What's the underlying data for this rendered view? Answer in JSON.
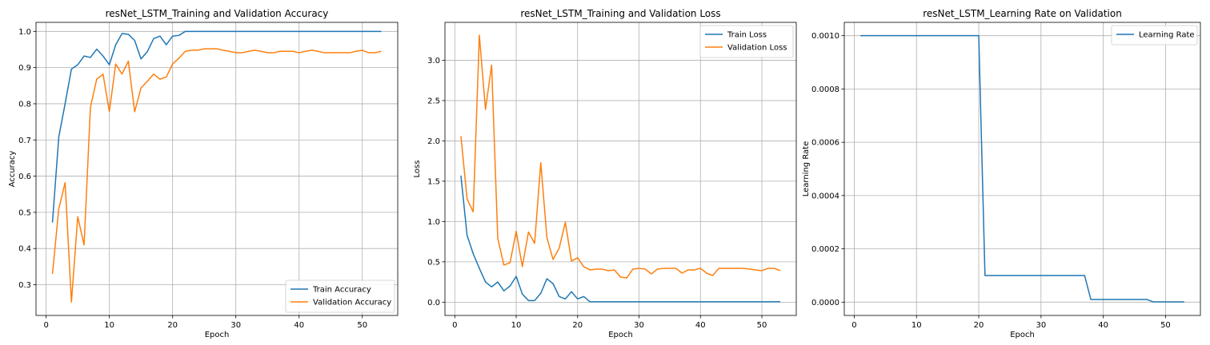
{
  "chart_data": [
    {
      "type": "line",
      "title": "resNet_LSTM_Training and Validation Accuracy",
      "xlabel": "Epoch",
      "ylabel": "Accuracy",
      "xlim": [
        -1.6,
        55.6
      ],
      "ylim": [
        0.215,
        1.025
      ],
      "xticks": [
        0,
        10,
        20,
        30,
        40,
        50
      ],
      "yticks": [
        0.3,
        0.4,
        0.5,
        0.6,
        0.7,
        0.8,
        0.9,
        1.0
      ],
      "ytick_labels": [
        "0.3",
        "0.4",
        "0.5",
        "0.6",
        "0.7",
        "0.8",
        "0.9",
        "1.0"
      ],
      "grid": true,
      "legend": "lower-right",
      "x": [
        1,
        2,
        3,
        4,
        5,
        6,
        7,
        8,
        9,
        10,
        11,
        12,
        13,
        14,
        15,
        16,
        17,
        18,
        19,
        20,
        21,
        22,
        23,
        24,
        25,
        26,
        27,
        28,
        29,
        30,
        31,
        32,
        33,
        34,
        35,
        36,
        37,
        38,
        39,
        40,
        41,
        42,
        43,
        44,
        45,
        46,
        47,
        48,
        49,
        50,
        51,
        52,
        53
      ],
      "series": [
        {
          "name": "Train Accuracy",
          "color": "#1f77b4",
          "values": [
            0.472,
            0.708,
            0.8,
            0.896,
            0.908,
            0.932,
            0.928,
            0.951,
            0.932,
            0.908,
            0.963,
            0.994,
            0.992,
            0.975,
            0.924,
            0.944,
            0.98,
            0.987,
            0.963,
            0.987,
            0.989,
            1.0,
            1.0,
            1.0,
            1.0,
            1.0,
            1.0,
            1.0,
            1.0,
            1.0,
            1.0,
            1.0,
            1.0,
            1.0,
            1.0,
            1.0,
            1.0,
            1.0,
            1.0,
            1.0,
            1.0,
            1.0,
            1.0,
            1.0,
            1.0,
            1.0,
            1.0,
            1.0,
            1.0,
            1.0,
            1.0,
            1.0,
            1.0
          ]
        },
        {
          "name": "Validation Accuracy",
          "color": "#ff7f0e",
          "values": [
            0.33,
            0.51,
            0.582,
            0.252,
            0.488,
            0.41,
            0.79,
            0.868,
            0.882,
            0.778,
            0.91,
            0.882,
            0.918,
            0.778,
            0.844,
            0.862,
            0.882,
            0.868,
            0.874,
            0.91,
            0.926,
            0.945,
            0.948,
            0.948,
            0.952,
            0.952,
            0.952,
            0.948,
            0.945,
            0.941,
            0.941,
            0.945,
            0.948,
            0.945,
            0.941,
            0.941,
            0.945,
            0.945,
            0.945,
            0.941,
            0.945,
            0.948,
            0.945,
            0.941,
            0.941,
            0.941,
            0.941,
            0.941,
            0.945,
            0.948,
            0.941,
            0.941,
            0.945
          ]
        }
      ]
    },
    {
      "type": "line",
      "title": "resNet_LSTM_Training and Validation Loss",
      "xlabel": "Epoch",
      "ylabel": "Loss",
      "xlim": [
        -1.6,
        55.6
      ],
      "ylim": [
        -0.165,
        3.47
      ],
      "xticks": [
        0,
        10,
        20,
        30,
        40,
        50
      ],
      "yticks": [
        0.0,
        0.5,
        1.0,
        1.5,
        2.0,
        2.5,
        3.0
      ],
      "ytick_labels": [
        "0.0",
        "0.5",
        "1.0",
        "1.5",
        "2.0",
        "2.5",
        "3.0"
      ],
      "grid": true,
      "legend": "top-right",
      "x": [
        1,
        2,
        3,
        4,
        5,
        6,
        7,
        8,
        9,
        10,
        11,
        12,
        13,
        14,
        15,
        16,
        17,
        18,
        19,
        20,
        21,
        22,
        23,
        24,
        25,
        26,
        27,
        28,
        29,
        30,
        31,
        32,
        33,
        34,
        35,
        36,
        37,
        38,
        39,
        40,
        41,
        42,
        43,
        44,
        45,
        46,
        47,
        48,
        49,
        50,
        51,
        52,
        53
      ],
      "series": [
        {
          "name": "Train Loss",
          "color": "#1f77b4",
          "values": [
            1.57,
            0.83,
            0.6,
            0.42,
            0.25,
            0.19,
            0.25,
            0.14,
            0.2,
            0.32,
            0.1,
            0.02,
            0.02,
            0.11,
            0.29,
            0.23,
            0.07,
            0.04,
            0.13,
            0.04,
            0.07,
            0.005,
            0.005,
            0.005,
            0.005,
            0.005,
            0.005,
            0.005,
            0.005,
            0.005,
            0.005,
            0.005,
            0.005,
            0.005,
            0.005,
            0.005,
            0.005,
            0.005,
            0.005,
            0.005,
            0.005,
            0.005,
            0.005,
            0.005,
            0.005,
            0.005,
            0.005,
            0.005,
            0.005,
            0.005,
            0.005,
            0.005,
            0.005
          ]
        },
        {
          "name": "Validation Loss",
          "color": "#ff7f0e",
          "values": [
            2.06,
            1.28,
            1.12,
            3.31,
            2.39,
            2.94,
            0.79,
            0.46,
            0.49,
            0.88,
            0.44,
            0.87,
            0.73,
            1.73,
            0.8,
            0.53,
            0.67,
            0.99,
            0.51,
            0.55,
            0.44,
            0.4,
            0.41,
            0.41,
            0.39,
            0.4,
            0.31,
            0.3,
            0.41,
            0.42,
            0.41,
            0.35,
            0.41,
            0.42,
            0.42,
            0.42,
            0.36,
            0.4,
            0.4,
            0.42,
            0.36,
            0.33,
            0.42,
            0.42,
            0.42,
            0.42,
            0.42,
            0.41,
            0.4,
            0.39,
            0.42,
            0.42,
            0.39
          ]
        }
      ]
    },
    {
      "type": "line",
      "title": "resNet_LSTM_Learning Rate on Validation",
      "xlabel": "Epoch",
      "ylabel": "Learning Rate",
      "xlim": [
        -1.6,
        55.6
      ],
      "ylim": [
        -5e-05,
        0.00105
      ],
      "xticks": [
        0,
        10,
        20,
        30,
        40,
        50
      ],
      "yticks": [
        0.0,
        0.0002,
        0.0004,
        0.0006,
        0.0008,
        0.001
      ],
      "ytick_labels": [
        "0.0000",
        "0.0002",
        "0.0004",
        "0.0006",
        "0.0008",
        "0.0010"
      ],
      "grid": true,
      "legend": "top-right",
      "x": [
        1,
        2,
        3,
        4,
        5,
        6,
        7,
        8,
        9,
        10,
        11,
        12,
        13,
        14,
        15,
        16,
        17,
        18,
        19,
        20,
        21,
        22,
        23,
        24,
        25,
        26,
        27,
        28,
        29,
        30,
        31,
        32,
        33,
        34,
        35,
        36,
        37,
        38,
        39,
        40,
        41,
        42,
        43,
        44,
        45,
        46,
        47,
        48,
        49,
        50,
        51,
        52,
        53
      ],
      "series": [
        {
          "name": "Learning Rate",
          "color": "#1f77b4",
          "values": [
            0.001,
            0.001,
            0.001,
            0.001,
            0.001,
            0.001,
            0.001,
            0.001,
            0.001,
            0.001,
            0.001,
            0.001,
            0.001,
            0.001,
            0.001,
            0.001,
            0.001,
            0.001,
            0.001,
            0.001,
            0.0001,
            0.0001,
            0.0001,
            0.0001,
            0.0001,
            0.0001,
            0.0001,
            0.0001,
            0.0001,
            0.0001,
            0.0001,
            0.0001,
            0.0001,
            0.0001,
            0.0001,
            0.0001,
            0.0001,
            1e-05,
            1e-05,
            1e-05,
            1e-05,
            1e-05,
            1e-05,
            1e-05,
            1e-05,
            1e-05,
            1e-05,
            1e-06,
            1e-06,
            1e-06,
            1e-06,
            1e-06,
            1e-06
          ]
        }
      ]
    }
  ]
}
